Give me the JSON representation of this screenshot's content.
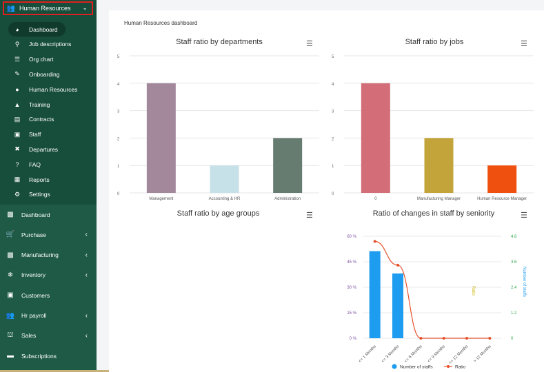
{
  "sidebar": {
    "header": {
      "label": "Human Resources",
      "icon": "users-icon"
    },
    "sub_items": [
      {
        "label": "Dashboard",
        "icon": "dashboard-icon",
        "active": true
      },
      {
        "label": "Job descriptions",
        "icon": "pin-icon"
      },
      {
        "label": "Org chart",
        "icon": "list-icon"
      },
      {
        "label": "Onboarding",
        "icon": "edit-icon"
      },
      {
        "label": "Human Resources",
        "icon": "user-icon"
      },
      {
        "label": "Training",
        "icon": "graduation-cap-icon"
      },
      {
        "label": "Contracts",
        "icon": "file-icon"
      },
      {
        "label": "Staff",
        "icon": "id-card-icon"
      },
      {
        "label": "Departures",
        "icon": "user-times-icon"
      },
      {
        "label": "FAQ",
        "icon": "question-icon"
      },
      {
        "label": "Reports",
        "icon": "report-icon"
      },
      {
        "label": "Settings",
        "icon": "cogs-icon"
      }
    ],
    "main_items": [
      {
        "label": "Dashboard",
        "icon": "monitor-icon",
        "chevron": false
      },
      {
        "label": "Purchase",
        "icon": "cart-icon",
        "chevron": true
      },
      {
        "label": "Manufacturing",
        "icon": "factory-icon",
        "chevron": true
      },
      {
        "label": "Inventory",
        "icon": "snowflake-icon",
        "chevron": true
      },
      {
        "label": "Customers",
        "icon": "address-card-icon",
        "chevron": false
      },
      {
        "label": "Hr payroll",
        "icon": "users-icon",
        "chevron": true
      },
      {
        "label": "Sales",
        "icon": "bank-icon",
        "chevron": true
      },
      {
        "label": "Subscriptions",
        "icon": "money-icon",
        "chevron": false
      }
    ]
  },
  "page": {
    "title": "Human Resources dashboard"
  },
  "charts_titles": {
    "departments": "Staff ratio by departments",
    "jobs": "Staff ratio by jobs",
    "age": "Staff ratio by age groups",
    "seniority": "Ratio of changes in staff by seniority"
  },
  "chart_data": [
    {
      "type": "bar",
      "title": "Staff ratio by departments",
      "categories": [
        "Management",
        "Accounting & HR",
        "Administration"
      ],
      "values": [
        4,
        1,
        2
      ],
      "colors": [
        "#a3879b",
        "#c7e1e8",
        "#667c70"
      ],
      "ylim": [
        0,
        5
      ],
      "yticks": [
        0,
        1,
        2,
        3,
        4,
        5
      ],
      "grid": true
    },
    {
      "type": "bar",
      "title": "Staff ratio by jobs",
      "categories": [
        "0",
        "Manufacturing Manager",
        "Human Resource Manager"
      ],
      "values": [
        4,
        2,
        1
      ],
      "colors": [
        "#d36d78",
        "#c2a43a",
        "#f0500f"
      ],
      "ylim": [
        0,
        5
      ],
      "yticks": [
        0,
        1,
        2,
        3,
        4,
        5
      ],
      "grid": true
    },
    {
      "type": "bar",
      "title": "Staff ratio by age groups",
      "categories": [],
      "values": []
    },
    {
      "type": "bar",
      "title": "Ratio of changes in staff by seniority",
      "categories": [
        "<= 1 Months",
        "<= 3 Months",
        "<= 6 Months",
        "<= 9 Months",
        "<= 12 Months",
        "> 12 Months"
      ],
      "series": [
        {
          "name": "Number of staffs",
          "type": "bar",
          "color": "#1e9cf0",
          "values": [
            4.1,
            3.05,
            0,
            0,
            0,
            0
          ]
        },
        {
          "name": "Ratio",
          "type": "line",
          "color": "#e5502b",
          "values": [
            57,
            43,
            0,
            0,
            0,
            0
          ]
        }
      ],
      "ylabel_left": "Ratio",
      "ylabel_right": "Number of staffs",
      "left_ticks": [
        "0 %",
        "15 %",
        "30 %",
        "45 %",
        "60 %"
      ],
      "right_ticks": [
        "0",
        "1.2",
        "2.4",
        "3.6",
        "4.8"
      ],
      "ylim_left": [
        0,
        60
      ],
      "ylim_right": [
        0,
        4.8
      ],
      "legend": "bottom"
    }
  ]
}
